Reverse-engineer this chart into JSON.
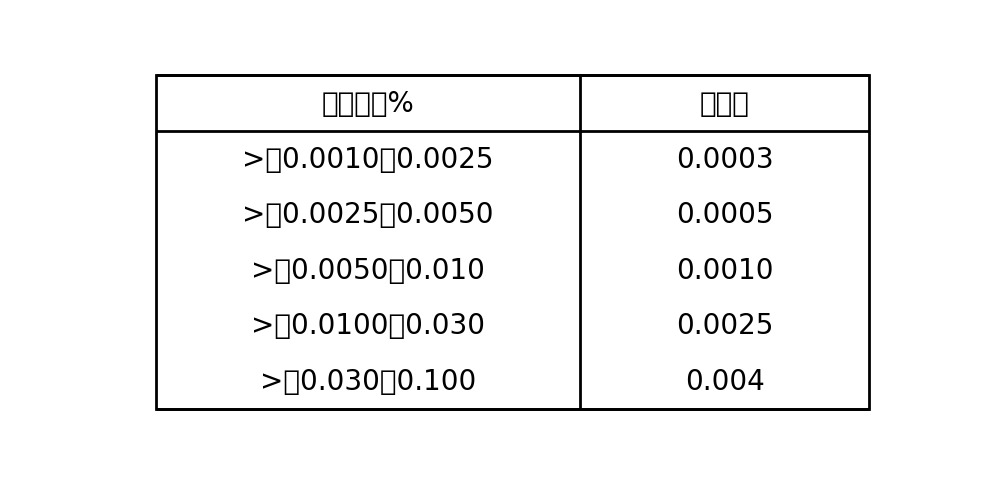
{
  "col1_header": "磷含量，%",
  "col2_header": "允许差",
  "rows": [
    [
      ">　0.0010～0.0025",
      "0.0003"
    ],
    [
      ">　0.0025～0.0050",
      "0.0005"
    ],
    [
      ">　0.0050～0.010",
      "0.0010"
    ],
    [
      ">　0.0100～0.030",
      "0.0025"
    ],
    [
      ">　0.030～0.100",
      "0.004"
    ]
  ],
  "bg_color": "#ffffff",
  "border_color": "#000000",
  "text_color": "#000000",
  "header_fontsize": 20,
  "cell_fontsize": 20,
  "fig_width": 10.0,
  "fig_height": 4.81
}
